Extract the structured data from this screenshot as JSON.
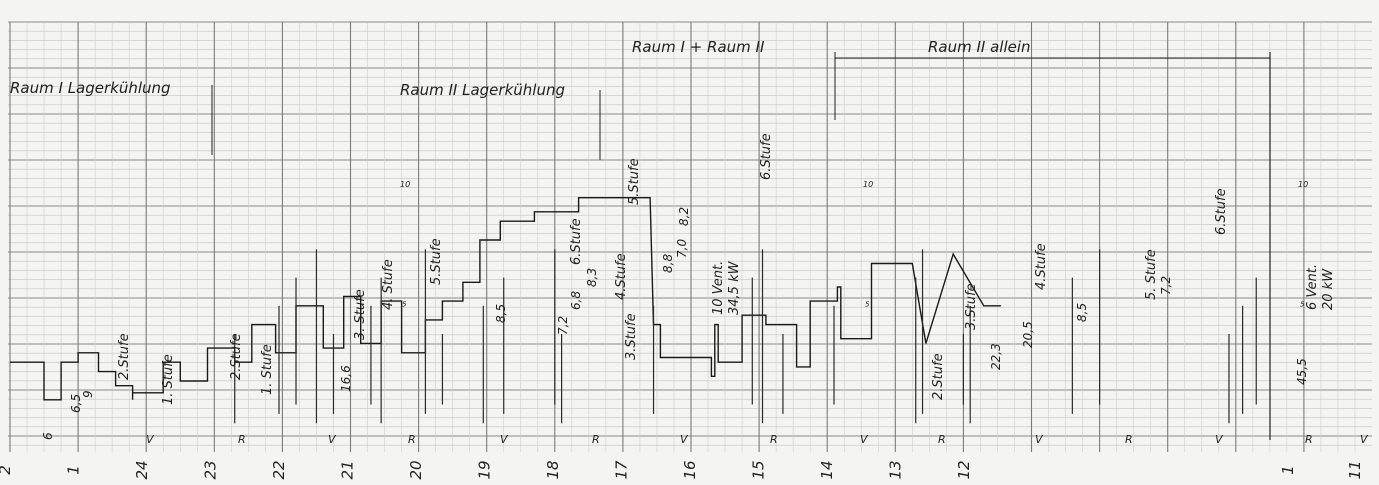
{
  "chart_data": {
    "type": "line",
    "title": "",
    "xlabel": "",
    "ylabel": "",
    "x_direction": "time runs right-to-left (hours of a recorder strip)",
    "x_ticks": [
      "2",
      "1",
      "24",
      "23",
      "22",
      "21",
      "20",
      "19",
      "18",
      "17",
      "16",
      "15",
      "14",
      "13",
      "12",
      "1",
      "11"
    ],
    "y_ticks": [
      "5",
      "10"
    ],
    "ylim": [
      0,
      14
    ],
    "sections": [
      {
        "label": "Raum I Lagerkühlung"
      },
      {
        "label": "Raum II Lagerkühlung"
      },
      {
        "label": "Raum I + Raum II"
      },
      {
        "label": "Raum II allein"
      }
    ],
    "stage_labels": [
      "2.Stufe",
      "1. Stufe",
      "2.Stufe",
      "1. Stufe",
      "3. Stufe",
      "4. Stufe",
      "5.Stufe",
      "6.Stufe",
      "4.Stufe",
      "3.Stufe",
      "5.Stufe",
      "6.Stufe",
      "2.Stufe",
      "3.Stufe",
      "4.Stufe",
      "5. Stufe",
      "6.Stufe"
    ],
    "dimension_labels": [
      "6",
      "6,5",
      "9",
      "16,6",
      "8,5",
      "7,2",
      "6,8",
      "8,3",
      "8,8",
      "7,0",
      "8,2",
      "22,3",
      "20,5",
      "8,5",
      "7,2",
      "45,5"
    ],
    "power_labels": [
      {
        "line1": "10 Vent.",
        "line2": "34,5 kW"
      },
      {
        "line1": "6 Vent.",
        "line2": "20 kW"
      }
    ],
    "mode_marks": [
      "V",
      "R",
      "V",
      "R",
      "V",
      "R",
      "V",
      "R",
      "V",
      "R",
      "V",
      "R",
      "V",
      "R",
      "V"
    ],
    "series": [
      {
        "x": [
          0,
          0.5,
          0.5,
          0.75,
          0.75,
          1.0,
          1.0,
          1.3,
          1.3,
          1.55,
          1.55,
          1.8,
          1.8,
          1.8,
          2.25,
          2.25,
          2.5,
          2.5,
          2.9,
          2.9,
          3.3,
          3.3,
          3.55,
          3.55,
          3.9,
          3.9,
          4.2,
          4.2,
          4.6,
          4.6,
          4.9,
          4.9,
          5.15,
          5.15,
          5.45,
          5.45,
          5.75,
          5.75,
          6.1,
          6.1,
          6.35,
          6.35,
          6.65,
          6.65,
          6.9,
          6.9,
          7.2,
          7.2,
          7.5,
          7.5,
          7.7,
          7.7,
          8.1,
          8.1,
          8.35,
          8.35,
          8.6,
          8.6,
          8.9,
          8.9,
          9.4,
          9.4,
          9.45,
          9.45,
          9.45,
          9.55,
          9.55,
          9.85,
          9.85,
          10.3,
          10.3,
          10.35,
          10.35,
          10.4,
          10.4,
          10.75,
          10.75,
          11.1,
          11.1,
          11.55,
          11.55,
          11.75,
          11.75,
          12.15,
          12.15,
          12.2,
          12.2,
          12.65,
          12.65,
          13.25,
          13.25,
          13.45,
          13.45,
          13.85,
          13.85,
          14.3,
          14.3,
          14.55
        ],
        "values": [
          2.8,
          2.8,
          1.2,
          1.2,
          2.8,
          2.8,
          3.2,
          3.2,
          2.4,
          2.4,
          1.8,
          1.8,
          1.2,
          1.5,
          1.5,
          2.8,
          2.8,
          2.0,
          2.0,
          3.4,
          3.4,
          2.8,
          2.8,
          4.4,
          4.4,
          3.2,
          3.2,
          5.2,
          5.2,
          3.4,
          3.4,
          5.6,
          5.6,
          3.6,
          3.6,
          5.4,
          5.4,
          3.2,
          3.2,
          4.6,
          4.6,
          5.4,
          5.4,
          6.2,
          6.2,
          8.0,
          8.0,
          8.8,
          8.8,
          8.8,
          8.8,
          9.2,
          9.2,
          9.2,
          9.2,
          9.8,
          9.8,
          9.8,
          9.8,
          9.8,
          9.8,
          9.8,
          4.4,
          4.4,
          4.4,
          4.4,
          3.0,
          3.0,
          3.0,
          3.0,
          2.2,
          2.2,
          4.4,
          4.4,
          2.8,
          2.8,
          4.8,
          4.8,
          4.4,
          4.4,
          2.6,
          2.6,
          5.4,
          5.4,
          6.0,
          6.0,
          3.8,
          3.8,
          7.0,
          7.0,
          7.0,
          3.6,
          3.6,
          7.4,
          7.4,
          5.2,
          5.2,
          5.2
        ]
      }
    ],
    "grid": true,
    "legend": "none"
  }
}
